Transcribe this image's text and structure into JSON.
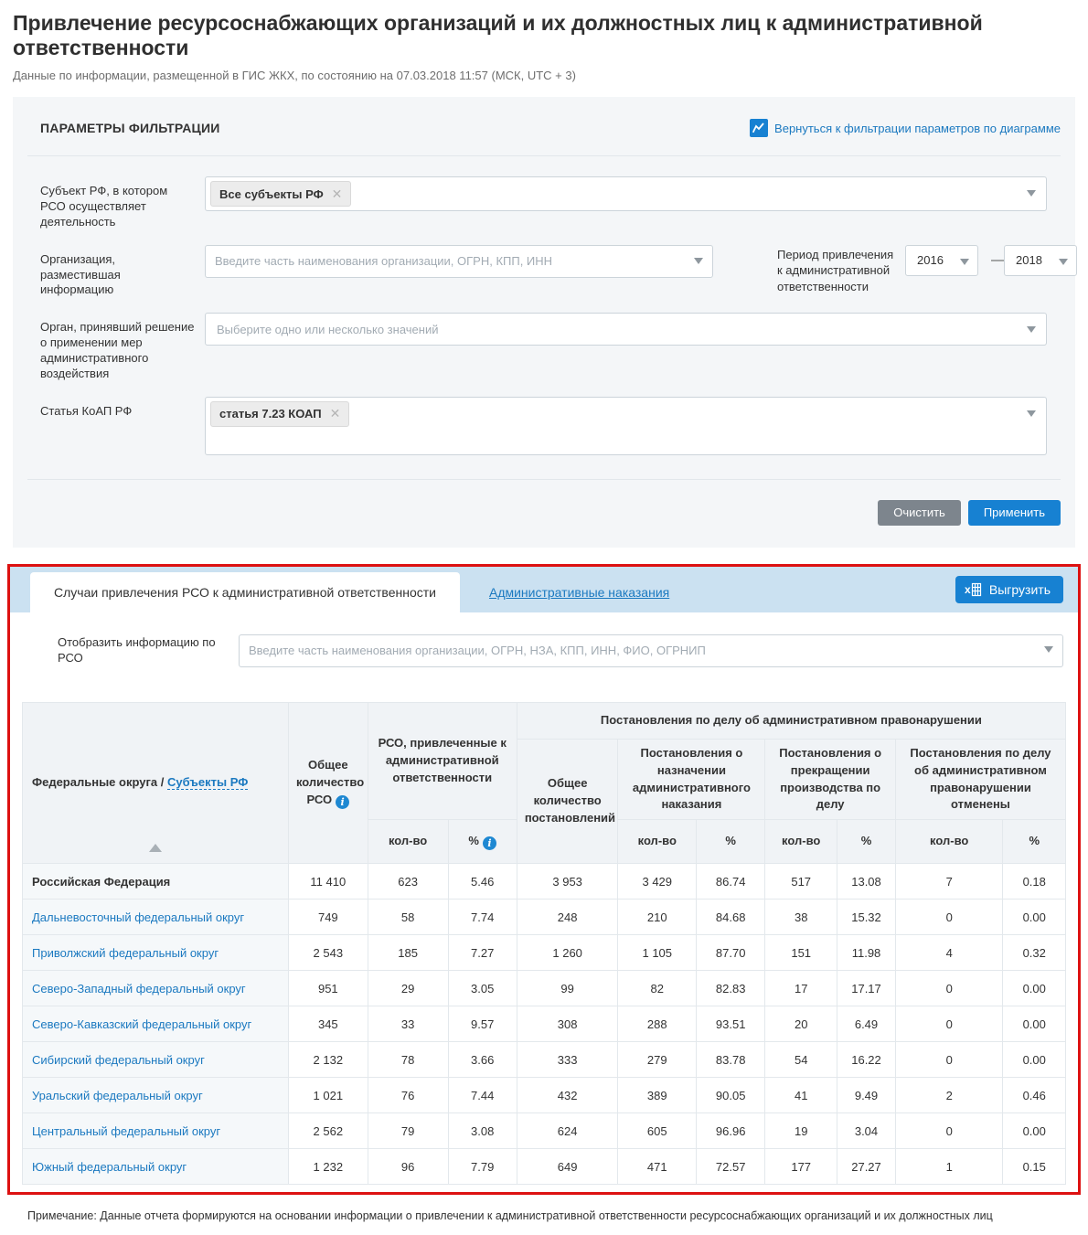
{
  "page": {
    "title": "Привлечение ресурсоснабжающих организаций и их должностных лиц к административной ответственности",
    "subtitle": "Данные по информации, размещенной в ГИС ЖКХ, по состоянию на 07.03.2018 11:57 (МСК, UTC + 3)",
    "note": "Примечание: Данные отчета формируются на основании информации о привлечении к административной ответственности ресурсоснабжающих организаций и их должностных лиц"
  },
  "filters": {
    "heading": "ПАРАМЕТРЫ ФИЛЬТРАЦИИ",
    "back_link": "Вернуться к фильтрации параметров по диаграмме",
    "subject": {
      "label": "Субъект РФ, в котором РСО осуществляет деятельность",
      "tag": "Все субъекты РФ",
      "remove": "✕"
    },
    "organization": {
      "label": "Организация, разместившая информацию",
      "placeholder": "Введите часть наименования организации, ОГРН, КПП, ИНН"
    },
    "period": {
      "label": "Период привлечения к административной ответственности",
      "from": "2016",
      "to": "2018",
      "separator": "—"
    },
    "organ": {
      "label": "Орган, принявший решение о применении мер административного воздействия",
      "placeholder": "Выберите одно или несколько значений"
    },
    "article": {
      "label": "Статья КоАП РФ",
      "tag": "статья 7.23 КОАП",
      "remove": "✕"
    },
    "buttons": {
      "clear": "Очистить",
      "apply": "Применить"
    }
  },
  "report": {
    "tab_active": "Случаи привлечения РСО к административной ответственности",
    "tab_inactive": "Административные наказания",
    "export_label": "Выгрузить",
    "search": {
      "label": "Отобразить информацию по РСО",
      "placeholder": "Введите часть наименования организации, ОГРН, НЗА, КПП, ИНН, ФИО, ОГРНИП"
    }
  },
  "table": {
    "header": {
      "col_districts_prefix": "Федеральные округа / ",
      "col_districts_link": "Субъекты РФ",
      "col_total_rso": "Общее количество РСО",
      "group_rso_involved": "РСО, привлеченные к административной ответственности",
      "band_resolutions": "Постановления по делу об административном правонарушении",
      "col_total_resolutions": "Общее количество постановлений",
      "group_assignment": "Постановления о назначении административного наказания",
      "group_termination": "Постановления о прекращении производства по делу",
      "group_cancelled": "Постановления по делу об административном правонарушении отменены",
      "sub_count": "кол-во",
      "sub_percent": "%"
    },
    "rows": [
      {
        "name": "Российская Федерация",
        "link": false,
        "values": [
          "11 410",
          "623",
          "5.46",
          "3 953",
          "3 429",
          "86.74",
          "517",
          "13.08",
          "7",
          "0.18"
        ]
      },
      {
        "name": "Дальневосточный федеральный округ",
        "link": true,
        "values": [
          "749",
          "58",
          "7.74",
          "248",
          "210",
          "84.68",
          "38",
          "15.32",
          "0",
          "0.00"
        ]
      },
      {
        "name": "Приволжский федеральный округ",
        "link": true,
        "values": [
          "2 543",
          "185",
          "7.27",
          "1 260",
          "1 105",
          "87.70",
          "151",
          "11.98",
          "4",
          "0.32"
        ]
      },
      {
        "name": "Северо-Западный федеральный округ",
        "link": true,
        "values": [
          "951",
          "29",
          "3.05",
          "99",
          "82",
          "82.83",
          "17",
          "17.17",
          "0",
          "0.00"
        ]
      },
      {
        "name": "Северо-Кавказский федеральный округ",
        "link": true,
        "values": [
          "345",
          "33",
          "9.57",
          "308",
          "288",
          "93.51",
          "20",
          "6.49",
          "0",
          "0.00"
        ]
      },
      {
        "name": "Сибирский федеральный округ",
        "link": true,
        "values": [
          "2 132",
          "78",
          "3.66",
          "333",
          "279",
          "83.78",
          "54",
          "16.22",
          "0",
          "0.00"
        ]
      },
      {
        "name": "Уральский федеральный округ",
        "link": true,
        "values": [
          "1 021",
          "76",
          "7.44",
          "432",
          "389",
          "90.05",
          "41",
          "9.49",
          "2",
          "0.46"
        ]
      },
      {
        "name": "Центральный федеральный округ",
        "link": true,
        "values": [
          "2 562",
          "79",
          "3.08",
          "624",
          "605",
          "96.96",
          "19",
          "3.04",
          "0",
          "0.00"
        ]
      },
      {
        "name": "Южный федеральный округ",
        "link": true,
        "values": [
          "1 232",
          "96",
          "7.79",
          "649",
          "471",
          "72.57",
          "177",
          "27.27",
          "1",
          "0.15"
        ]
      }
    ]
  },
  "colors": {
    "accent_blue": "#1781d2",
    "link_blue": "#1b79c0",
    "tab_strip": "#cbe1f1",
    "highlight_red": "#dd1111",
    "button_gray": "#7d858d"
  }
}
